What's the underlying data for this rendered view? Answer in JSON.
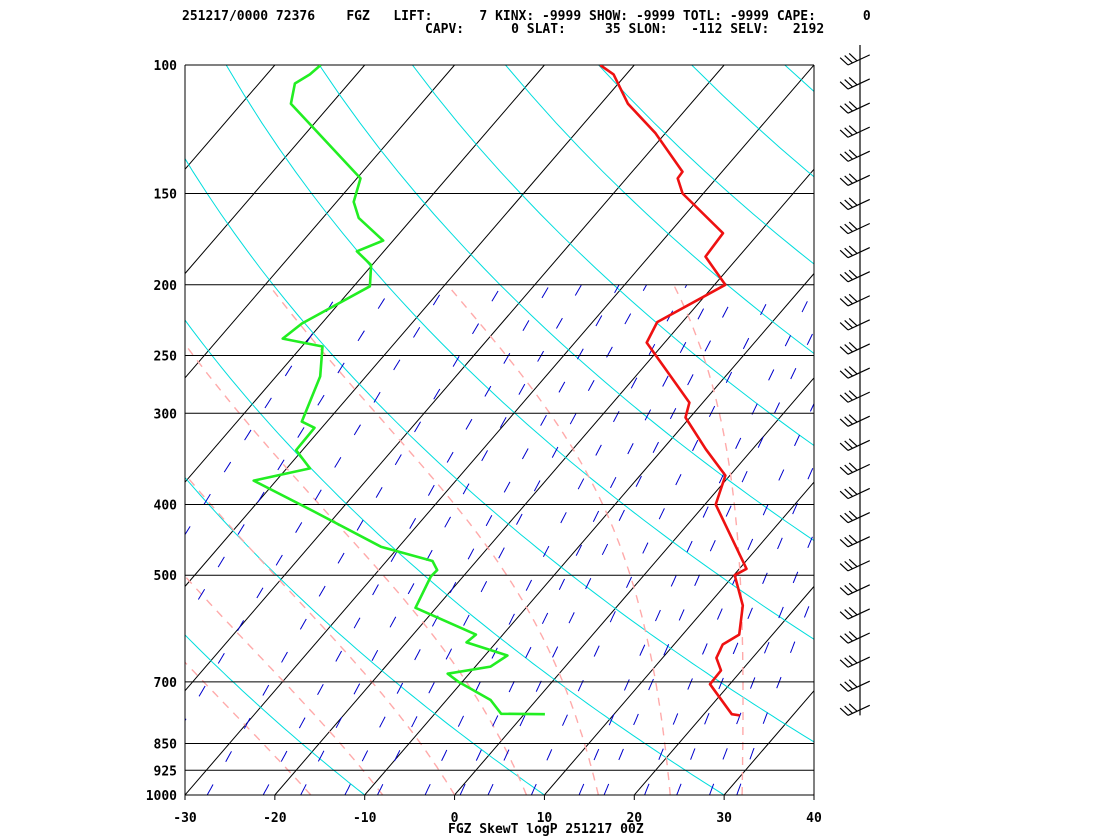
{
  "header": {
    "line1": "251217/0000 72376    FGZ   LIFT:      7 KINX: -9999 SHOW: -9999 TOTL: -9999 CAPE:      0",
    "line2": "CAPV:      0 SLAT:     35 SLON:   -112 SELV:   2192"
  },
  "footer": "FGZ SkewT logP 251217 00Z",
  "colors": {
    "temperature": "#ee1111",
    "dewpoint": "#22ee22",
    "isotherm": "#000000",
    "isobar": "#000000",
    "dry_adiabat": "#00dddd",
    "moist_adiabat": "#ffaaaa",
    "mixing_ratio": "#0000cc",
    "wind_barb": "#000000"
  },
  "chart_data": {
    "type": "line",
    "title": "FGZ SkewT logP 251217 00Z",
    "station": "FGZ",
    "station_number": "72376",
    "xlabel": "",
    "ylabel": "",
    "x_axis": "Temperature (C)",
    "y_axis": "Pressure (mb), logarithmic",
    "xlim": [
      -30,
      40
    ],
    "ylim": [
      1000,
      100
    ],
    "x_ticks": [
      -30,
      -20,
      -10,
      0,
      10,
      20,
      30,
      40
    ],
    "y_ticks": [
      100,
      150,
      200,
      250,
      300,
      400,
      500,
      700,
      850,
      925,
      1000
    ],
    "skew_degrees_per_decade": 70,
    "grid": true,
    "indices": {
      "LIFT": 7,
      "KINX": -9999,
      "SHOW": -9999,
      "TOTL": -9999,
      "CAPE": 0,
      "CAPV": 0,
      "SLAT": 35,
      "SLON": -112,
      "SELV": 2192
    },
    "series": [
      {
        "name": "Temperature",
        "points": [
          {
            "p": 778,
            "t": 24.1
          },
          {
            "p": 775,
            "t": 23.1
          },
          {
            "p": 705,
            "t": 17.8
          },
          {
            "p": 675,
            "t": 17.7
          },
          {
            "p": 649,
            "t": 16.0
          },
          {
            "p": 622,
            "t": 15.4
          },
          {
            "p": 603,
            "t": 16.3
          },
          {
            "p": 550,
            "t": 13.9
          },
          {
            "p": 500,
            "t": 10.1
          },
          {
            "p": 490,
            "t": 10.8
          },
          {
            "p": 400,
            "t": 1.2
          },
          {
            "p": 365,
            "t": -0.5
          },
          {
            "p": 336,
            "t": -5.2
          },
          {
            "p": 304,
            "t": -10.5
          },
          {
            "p": 290,
            "t": -11.5
          },
          {
            "p": 240,
            "t": -22.0
          },
          {
            "p": 225,
            "t": -22.8
          },
          {
            "p": 200,
            "t": -18.8
          },
          {
            "p": 183,
            "t": -23.7
          },
          {
            "p": 170,
            "t": -24.0
          },
          {
            "p": 150,
            "t": -32.3
          },
          {
            "p": 143,
            "t": -34.3
          },
          {
            "p": 140,
            "t": -34.4
          },
          {
            "p": 124,
            "t": -41.1
          },
          {
            "p": 113,
            "t": -47.0
          },
          {
            "p": 103,
            "t": -51.4
          },
          {
            "p": 100,
            "t": -53.8
          }
        ]
      },
      {
        "name": "Dewpoint",
        "points": [
          {
            "p": 775,
            "t": 2.3
          },
          {
            "p": 774,
            "t": -2.6
          },
          {
            "p": 741,
            "t": -5.1
          },
          {
            "p": 700,
            "t": -10.4
          },
          {
            "p": 682,
            "t": -12.4
          },
          {
            "p": 667,
            "t": -8.3
          },
          {
            "p": 644,
            "t": -7.5
          },
          {
            "p": 618,
            "t": -13.3
          },
          {
            "p": 603,
            "t": -13.0
          },
          {
            "p": 554,
            "t": -22.3
          },
          {
            "p": 502,
            "t": -23.6
          },
          {
            "p": 492,
            "t": -23.5
          },
          {
            "p": 478,
            "t": -24.9
          },
          {
            "p": 457,
            "t": -32.0
          },
          {
            "p": 409,
            "t": -42.8
          },
          {
            "p": 371,
            "t": -52.5
          },
          {
            "p": 357,
            "t": -47.4
          },
          {
            "p": 337,
            "t": -50.7
          },
          {
            "p": 314,
            "t": -50.8
          },
          {
            "p": 308,
            "t": -52.8
          },
          {
            "p": 267,
            "t": -55.1
          },
          {
            "p": 243,
            "t": -57.7
          },
          {
            "p": 237,
            "t": -62.9
          },
          {
            "p": 226,
            "t": -62.2
          },
          {
            "p": 201,
            "t": -58.2
          },
          {
            "p": 188,
            "t": -60.1
          },
          {
            "p": 180,
            "t": -63.0
          },
          {
            "p": 174,
            "t": -61.1
          },
          {
            "p": 162,
            "t": -66.0
          },
          {
            "p": 154,
            "t": -68.1
          },
          {
            "p": 143,
            "t": -69.6
          },
          {
            "p": 113,
            "t": -84.5
          },
          {
            "p": 106,
            "t": -86.0
          },
          {
            "p": 103,
            "t": -85.2
          },
          {
            "p": 100,
            "t": -84.9
          }
        ]
      }
    ],
    "wind_barbs_pressures_mb": [
      778,
      700,
      650,
      600,
      550,
      500,
      450,
      400,
      350,
      300,
      250,
      200,
      175,
      150,
      125,
      100
    ]
  }
}
